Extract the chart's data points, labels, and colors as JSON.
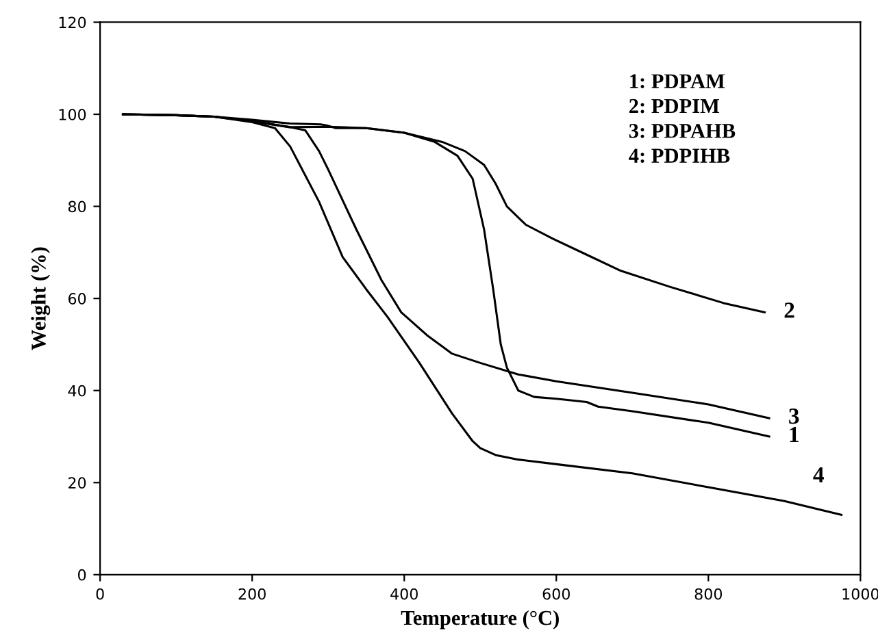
{
  "chart_data": {
    "type": "line",
    "xlabel": "Temperature (°C)",
    "ylabel": "Weight (%)",
    "xlim": [
      0,
      1000
    ],
    "ylim": [
      0,
      120
    ],
    "xticks": [
      0,
      200,
      400,
      600,
      800,
      1000
    ],
    "yticks": [
      0,
      20,
      40,
      60,
      80,
      100,
      120
    ],
    "grid": false,
    "legend": false,
    "marker": "none",
    "line_style": "solid",
    "series": [
      {
        "name": "1",
        "color": "#000000",
        "x": [
          30,
          100,
          150,
          200,
          250,
          300,
          350,
          400,
          440,
          470,
          490,
          505,
          517,
          527,
          535,
          550,
          571,
          600,
          640,
          655,
          700,
          800,
          880
        ],
        "values": [
          100,
          99.8,
          99.5,
          98.5,
          97.2,
          97.3,
          97,
          96,
          94,
          91,
          86,
          75,
          62,
          50,
          45,
          40,
          38.6,
          38.2,
          37.5,
          36.5,
          35.5,
          33,
          30
        ]
      },
      {
        "name": "2",
        "color": "#000000",
        "x": [
          30,
          100,
          150,
          200,
          250,
          290,
          300,
          310,
          350,
          400,
          450,
          480,
          505,
          520,
          535,
          560,
          595,
          640,
          685,
          750,
          820,
          874
        ],
        "values": [
          100,
          99.8,
          99.5,
          98.8,
          98,
          97.8,
          97.5,
          97,
          97,
          96,
          94,
          92,
          89,
          85,
          80,
          76,
          73,
          69.5,
          66,
          62.5,
          59,
          57
        ]
      },
      {
        "name": "3",
        "color": "#000000",
        "x": [
          30,
          100,
          150,
          200,
          250,
          270,
          288,
          300,
          337,
          370,
          396,
          430,
          463,
          500,
          550,
          600,
          700,
          800,
          880
        ],
        "values": [
          100,
          99.8,
          99.5,
          98.5,
          97.2,
          96.5,
          92,
          88,
          75,
          64,
          57,
          52,
          48,
          46,
          43.5,
          42,
          39.5,
          37,
          34
        ]
      },
      {
        "name": "4",
        "color": "#000000",
        "x": [
          30,
          100,
          150,
          200,
          230,
          250,
          288,
          319,
          350,
          378,
          420,
          463,
          490,
          500,
          520,
          550,
          600,
          700,
          800,
          900,
          975
        ],
        "values": [
          100,
          99.8,
          99.5,
          98.3,
          97,
          93,
          81,
          69,
          62,
          56,
          46,
          35,
          29,
          27.5,
          26,
          25,
          24,
          22,
          19,
          16,
          13
        ]
      }
    ],
    "annotations": [
      "1: PDPAM",
      "2: PDPIM",
      "3: PDPAHB",
      "4: PDPIHB"
    ]
  }
}
